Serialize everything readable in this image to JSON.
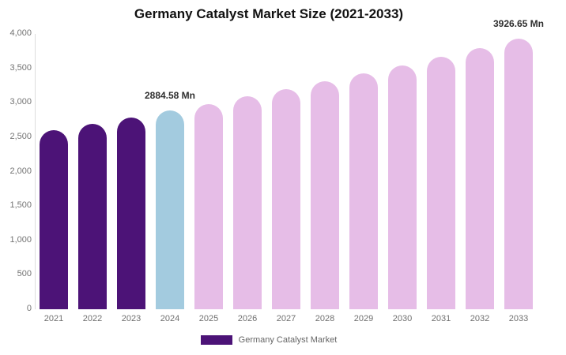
{
  "chart": {
    "title": "Germany Catalyst Market Size (2021-2033)",
    "legend_label": "Germany Catalyst Market"
  },
  "chart_data": {
    "type": "bar",
    "title": "Germany Catalyst Market Size (2021-2033)",
    "unit": "Mn",
    "categories": [
      "2021",
      "2022",
      "2023",
      "2024",
      "2025",
      "2026",
      "2027",
      "2028",
      "2029",
      "2030",
      "2031",
      "2032",
      "2033"
    ],
    "values": [
      2600,
      2695,
      2790,
      2884.58,
      2985,
      3090,
      3197,
      3308,
      3424,
      3544,
      3667,
      3795,
      3926.65
    ],
    "bar_roles": [
      "historical",
      "historical",
      "historical",
      "current",
      "forecast",
      "forecast",
      "forecast",
      "forecast",
      "forecast",
      "forecast",
      "forecast",
      "forecast",
      "forecast"
    ],
    "colors": {
      "historical": "#4C1377",
      "current": "#A3CBDF",
      "forecast": "#E6BDE7"
    },
    "xlabel": "",
    "ylabel": "",
    "ylim": [
      0,
      4000
    ],
    "ytick_step": 500,
    "ytick_labels": [
      "0",
      "500",
      "1,000",
      "1,500",
      "2,000",
      "2,500",
      "3,000",
      "3,500",
      "4,000"
    ],
    "grid": false,
    "legend_position": "bottom",
    "annotations": [
      {
        "category": "2024",
        "text": "2884.58 Mn"
      },
      {
        "category": "2033",
        "text": "3926.65 Mn"
      }
    ]
  }
}
